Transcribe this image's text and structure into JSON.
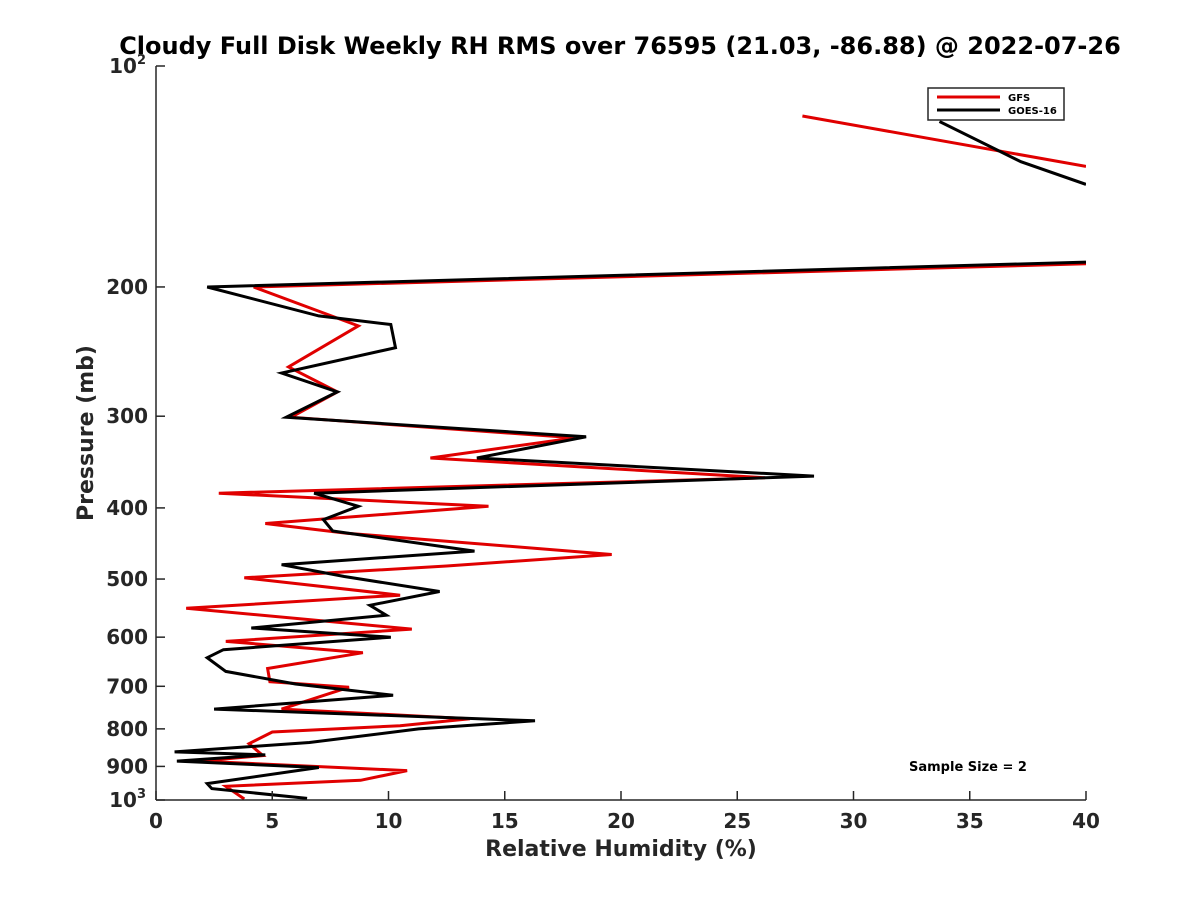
{
  "chart_data": {
    "type": "line",
    "title": "Cloudy Full Disk Weekly RH RMS over 76595 (21.03, -86.88) @ 2022-07-26",
    "xlabel": "Relative Humidity (%)",
    "ylabel": "Pressure (mb)",
    "xlim": [
      0,
      40
    ],
    "ylim": [
      100,
      1000
    ],
    "yscale": "log",
    "y_reversed": true,
    "grid": false,
    "legend_position": "top-right",
    "xticks": [
      "0",
      "5",
      "10",
      "15",
      "20",
      "25",
      "30",
      "35",
      "40"
    ],
    "yticks": [
      {
        "value": 100,
        "base": "10",
        "exp": "2"
      },
      {
        "value": 200,
        "label": "200"
      },
      {
        "value": 300,
        "label": "300"
      },
      {
        "value": 400,
        "label": "400"
      },
      {
        "value": 500,
        "label": "500"
      },
      {
        "value": 600,
        "label": "600"
      },
      {
        "value": 700,
        "label": "700"
      },
      {
        "value": 800,
        "label": "800"
      },
      {
        "value": 900,
        "label": "900"
      },
      {
        "value": 1000,
        "base": "10",
        "exp": "3"
      }
    ],
    "annotation": "Sample Size = 2",
    "series": [
      {
        "name": "GFS",
        "color": "#e00000",
        "segments": [
          [
            [
              27.8,
              117
            ],
            [
              40,
              137
            ]
          ],
          [
            [
              40,
              186
            ],
            [
              4.2,
              200
            ],
            [
              8.7,
              226
            ],
            [
              5.7,
              257
            ],
            [
              7.8,
              278
            ],
            [
              5.8,
              301
            ],
            [
              18,
              321
            ],
            [
              11.8,
              342
            ],
            [
              26.2,
              364
            ],
            [
              2.7,
              382
            ],
            [
              14.3,
              398
            ],
            [
              4.7,
              420
            ],
            [
              8.2,
              433
            ],
            [
              19.6,
              463
            ],
            [
              12.5,
              480
            ],
            [
              3.8,
              498
            ],
            [
              10.5,
              526
            ],
            [
              1.3,
              548
            ],
            [
              11,
              585
            ],
            [
              3,
              608
            ],
            [
              8.9,
              630
            ],
            [
              4.8,
              662
            ],
            [
              4.9,
              690
            ],
            [
              8.3,
              702
            ],
            [
              5.4,
              752
            ],
            [
              13.5,
              775
            ],
            [
              10.5,
              792
            ],
            [
              5,
              808
            ],
            [
              4,
              838
            ],
            [
              4.6,
              870
            ],
            [
              1.9,
              885
            ],
            [
              10.8,
              912
            ],
            [
              8.8,
              940
            ],
            [
              3,
              958
            ],
            [
              3.8,
              997
            ]
          ]
        ]
      },
      {
        "name": "GOES-16",
        "color": "#000000",
        "segments": [
          [
            [
              33.7,
              119
            ],
            [
              37.2,
              135
            ],
            [
              40,
              145
            ]
          ],
          [
            [
              40,
              185
            ],
            [
              2.2,
              200
            ],
            [
              7,
              219
            ],
            [
              10.1,
              225
            ],
            [
              10.3,
              242
            ],
            [
              5.4,
              262
            ],
            [
              7.8,
              278
            ],
            [
              5.6,
              301
            ],
            [
              18.5,
              320
            ],
            [
              13.8,
              342
            ],
            [
              28.3,
              362
            ],
            [
              6.8,
              382
            ],
            [
              8.7,
              398
            ],
            [
              7.2,
              415
            ],
            [
              7.6,
              430
            ],
            [
              13.7,
              458
            ],
            [
              5.4,
              478
            ],
            [
              8.1,
              496
            ],
            [
              12.2,
              520
            ],
            [
              9.2,
              543
            ],
            [
              9.9,
              560
            ],
            [
              4.1,
              583
            ],
            [
              10.1,
              600
            ],
            [
              2.9,
              624
            ],
            [
              2.2,
              640
            ],
            [
              3,
              668
            ],
            [
              6,
              695
            ],
            [
              10.2,
              720
            ],
            [
              2.5,
              752
            ],
            [
              16.3,
              780
            ],
            [
              11.3,
              800
            ],
            [
              6.6,
              835
            ],
            [
              0.8,
              860
            ],
            [
              4.7,
              868
            ],
            [
              0.9,
              885
            ],
            [
              7,
              903
            ],
            [
              2.2,
              950
            ],
            [
              2.4,
              965
            ],
            [
              6.5,
              995
            ]
          ]
        ]
      }
    ]
  }
}
